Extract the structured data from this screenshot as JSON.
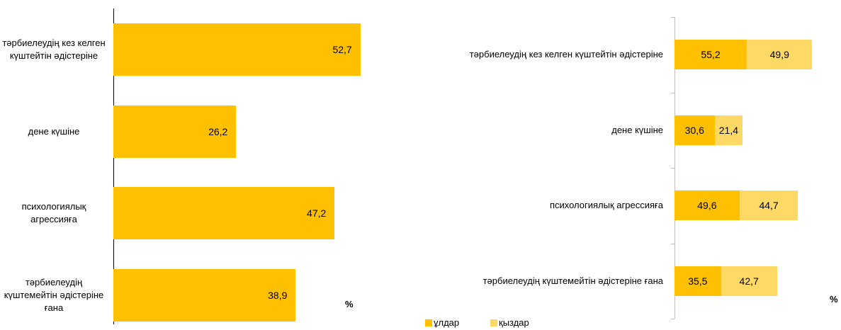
{
  "chart_data": [
    {
      "type": "bar",
      "orientation": "horizontal",
      "categories": [
        "тәрбиелеудің кез келген күштейтін әдістеріне",
        "дене күшіне",
        "психологиялық агрессияға",
        "тәрбиелеудің күштемейтін әдістеріне ғана"
      ],
      "values": [
        52.7,
        26.2,
        47.2,
        38.9
      ],
      "value_labels": [
        "52,7",
        "26,2",
        "47,2",
        "38,9"
      ],
      "color": "#ffc000",
      "xlim": [
        0,
        60
      ],
      "unit_label": "%"
    },
    {
      "type": "stacked_bar",
      "orientation": "horizontal",
      "categories": [
        "тәрбиелеудің кез келген күштейтін әдістеріне",
        "дене күшіне",
        "психологиялық агрессияға",
        "тәрбиелеудің күштемейтін әдістеріне ғана"
      ],
      "series": [
        {
          "name": "ұлдар",
          "color": "#ffc000",
          "values": [
            55.2,
            30.6,
            49.6,
            35.5
          ],
          "value_labels": [
            "55,2",
            "30,6",
            "49,6",
            "35,5"
          ]
        },
        {
          "name": "қыздар",
          "color": "#ffd966",
          "values": [
            49.9,
            21.4,
            44.7,
            42.7
          ],
          "value_labels": [
            "49,9",
            "21,4",
            "44,7",
            "42,7"
          ]
        }
      ],
      "xlim": [
        0,
        120
      ],
      "unit_label": "%",
      "legend": "bottom"
    }
  ]
}
